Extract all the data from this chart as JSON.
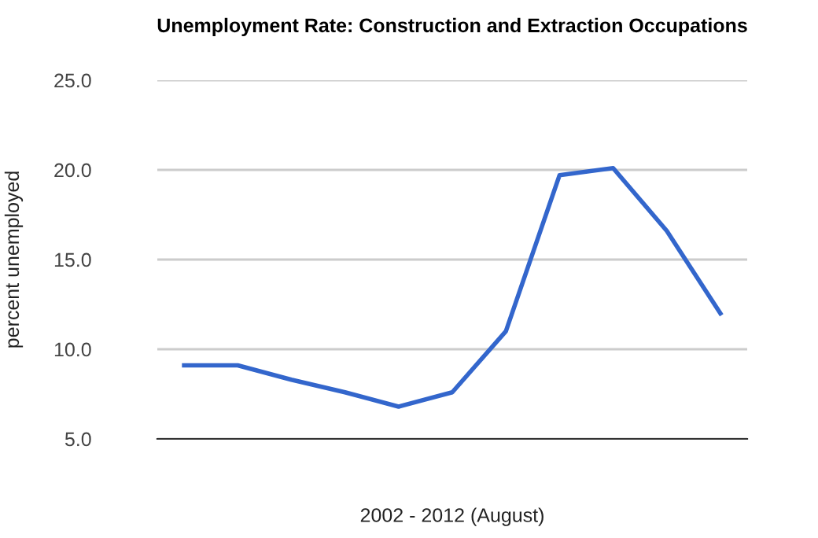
{
  "chart_data": {
    "type": "line",
    "title": "Unemployment Rate: Construction and Extraction Occupations",
    "xlabel": "2002 - 2012 (August)",
    "ylabel": "percent unemployed",
    "categories": [
      null,
      null,
      null,
      null,
      null,
      null,
      null,
      null,
      null,
      null,
      null
    ],
    "series": [
      {
        "color": "#3366cc",
        "values": [
          9.1,
          9.1,
          8.3,
          7.6,
          6.8,
          7.6,
          11.0,
          19.7,
          20.1,
          16.6,
          12.0
        ]
      }
    ],
    "ylim": [
      5,
      25
    ],
    "yticks": [
      {
        "value": 5,
        "label": "5.0"
      },
      {
        "value": 10,
        "label": "10.0"
      },
      {
        "value": 15,
        "label": "15.0"
      },
      {
        "value": 20,
        "label": "20.0"
      },
      {
        "value": 25,
        "label": "25.0"
      }
    ],
    "grid": "y",
    "legend": false,
    "marker": "none",
    "line_style": "solid"
  }
}
